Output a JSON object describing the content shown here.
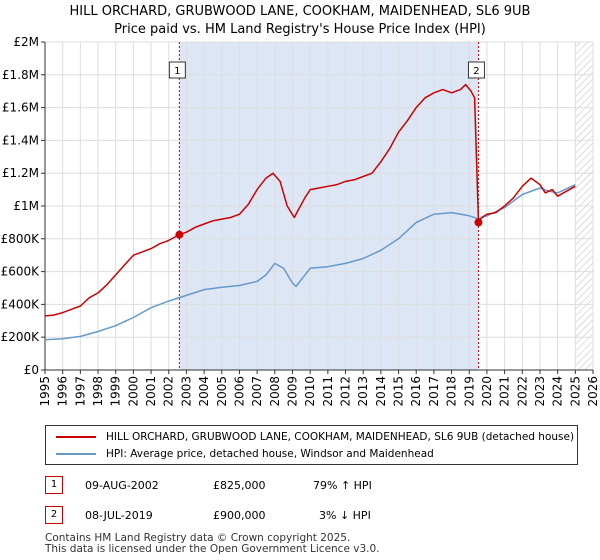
{
  "title_line1": "HILL ORCHARD, GRUBWOOD LANE, COOKHAM, MAIDENHEAD, SL6 9UB",
  "title_line2": "Price paid vs. HM Land Registry's House Price Index (HPI)",
  "legend": {
    "property_label": "HILL ORCHARD, GRUBWOOD LANE, COOKHAM, MAIDENHEAD, SL6 9UB (detached house)",
    "hpi_label": "HPI: Average price, detached house, Windsor and Maidenhead"
  },
  "transactions": [
    {
      "num": "1",
      "date": "09-AUG-2002",
      "price": "£825,000",
      "hpi_change": "79% ↑ HPI"
    },
    {
      "num": "2",
      "date": "08-JUL-2019",
      "price": "£900,000",
      "hpi_change": "3% ↓ HPI"
    }
  ],
  "footer_line1": "Contains HM Land Registry data © Crown copyright 2025.",
  "footer_line2": "This data is licensed under the Open Government Licence v3.0.",
  "colors": {
    "property": "#cc0000",
    "hpi": "#6699cc",
    "shade": "#dde6f5",
    "grid": "#dddddd"
  },
  "chart_data": {
    "type": "line",
    "title": "HILL ORCHARD, GRUBWOOD LANE, COOKHAM, MAIDENHEAD, SL6 9UB",
    "xlabel": "",
    "ylabel": "",
    "xlim": [
      1995,
      2026
    ],
    "ylim": [
      0,
      2000000
    ],
    "y_ticks": [
      0,
      200000,
      400000,
      600000,
      800000,
      1000000,
      1200000,
      1400000,
      1600000,
      1800000,
      2000000
    ],
    "y_tick_labels": [
      "£0",
      "£200K",
      "£400K",
      "£600K",
      "£800K",
      "£1M",
      "£1.2M",
      "£1.4M",
      "£1.6M",
      "£1.8M",
      "£2M"
    ],
    "x_ticks": [
      "1995",
      "1996",
      "1997",
      "1998",
      "1999",
      "2000",
      "2001",
      "2002",
      "2003",
      "2004",
      "2005",
      "2006",
      "2007",
      "2008",
      "2009",
      "2010",
      "2011",
      "2012",
      "2013",
      "2014",
      "2015",
      "2016",
      "2017",
      "2018",
      "2019",
      "2020",
      "2021",
      "2022",
      "2023",
      "2024",
      "2025",
      "2026"
    ],
    "shaded_range": [
      2002.6,
      2019.52
    ],
    "forecast_start": 2025.0,
    "series": [
      {
        "name": "HILL ORCHARD, GRUBWOOD LANE, COOKHAM, MAIDENHEAD, SL6 9UB (detached house)",
        "x": [
          1995,
          1995.5,
          1996,
          1996.5,
          1997,
          1997.5,
          1998,
          1998.5,
          1999,
          1999.5,
          2000,
          2000.5,
          2001,
          2001.5,
          2002,
          2002.6,
          2003,
          2003.5,
          2004,
          2004.5,
          2005,
          2005.5,
          2006,
          2006.5,
          2007,
          2007.5,
          2007.9,
          2008.3,
          2008.7,
          2009.1,
          2009.3,
          2009.7,
          2010,
          2010.5,
          2011,
          2011.5,
          2012,
          2012.5,
          2013,
          2013.5,
          2014,
          2014.5,
          2015,
          2015.5,
          2016,
          2016.5,
          2017,
          2017.5,
          2018,
          2018.5,
          2018.8,
          2019.1,
          2019.3,
          2019.52,
          2019.7,
          2020,
          2020.5,
          2021,
          2021.5,
          2022,
          2022.5,
          2023,
          2023.3,
          2023.7,
          2024,
          2024.5,
          2025
        ],
        "values": [
          330000,
          335000,
          350000,
          370000,
          390000,
          440000,
          470000,
          520000,
          580000,
          640000,
          700000,
          720000,
          740000,
          770000,
          790000,
          825000,
          840000,
          870000,
          890000,
          910000,
          920000,
          930000,
          950000,
          1010000,
          1100000,
          1170000,
          1200000,
          1150000,
          1000000,
          930000,
          970000,
          1050000,
          1100000,
          1110000,
          1120000,
          1130000,
          1150000,
          1160000,
          1180000,
          1200000,
          1270000,
          1350000,
          1450000,
          1520000,
          1600000,
          1660000,
          1690000,
          1710000,
          1690000,
          1710000,
          1740000,
          1700000,
          1660000,
          900000,
          930000,
          950000,
          960000,
          1000000,
          1050000,
          1120000,
          1170000,
          1130000,
          1080000,
          1100000,
          1060000,
          1090000,
          1120000
        ]
      },
      {
        "name": "HPI: Average price, detached house, Windsor and Maidenhead",
        "x": [
          1995,
          1996,
          1997,
          1998,
          1999,
          2000,
          2001,
          2002,
          2003,
          2004,
          2005,
          2006,
          2007,
          2007.5,
          2008,
          2008.5,
          2009,
          2009.2,
          2010,
          2011,
          2012,
          2013,
          2014,
          2015,
          2016,
          2017,
          2018,
          2019,
          2019.52,
          2020,
          2021,
          2022,
          2023,
          2023.5,
          2024,
          2025
        ],
        "values": [
          185000,
          190000,
          205000,
          235000,
          270000,
          320000,
          380000,
          420000,
          455000,
          490000,
          505000,
          515000,
          540000,
          580000,
          650000,
          620000,
          530000,
          510000,
          620000,
          630000,
          650000,
          680000,
          730000,
          800000,
          900000,
          950000,
          960000,
          940000,
          920000,
          940000,
          990000,
          1070000,
          1110000,
          1090000,
          1080000,
          1130000
        ]
      }
    ],
    "annotations": [
      {
        "label": "1",
        "x": 2002.6,
        "value": 825000
      },
      {
        "label": "2",
        "x": 2019.52,
        "value": 900000
      }
    ]
  }
}
